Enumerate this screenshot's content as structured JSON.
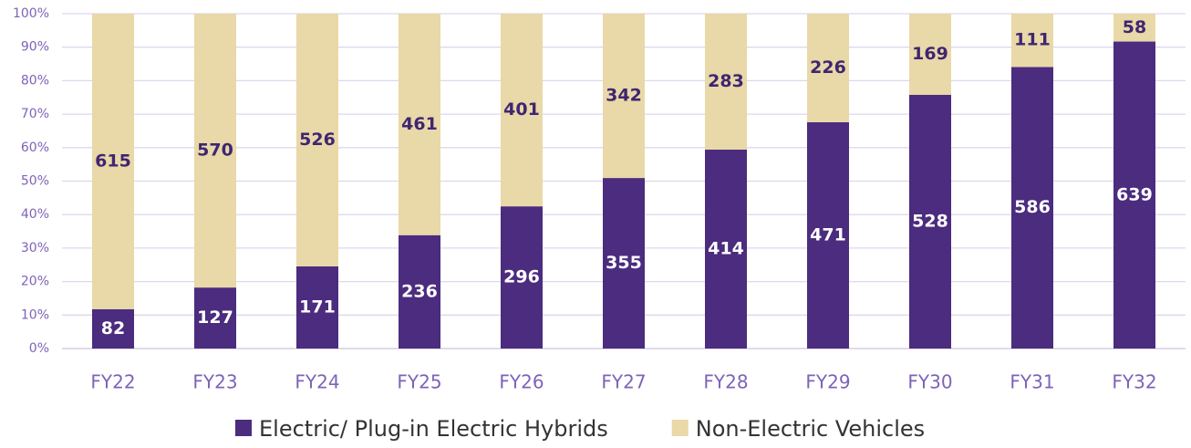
{
  "chart_data": {
    "type": "bar",
    "stacking": "percent",
    "categories": [
      "FY22",
      "FY23",
      "FY24",
      "FY25",
      "FY26",
      "FY27",
      "FY28",
      "FY29",
      "FY30",
      "FY31",
      "FY32"
    ],
    "series": [
      {
        "name": "Electric/ Plug-in Electric Hybrids",
        "color": "#4b2c7e",
        "label_color": "#ffffff",
        "values": [
          82,
          127,
          171,
          236,
          296,
          355,
          414,
          471,
          528,
          586,
          639
        ]
      },
      {
        "name": "Non-Electric Vehicles",
        "color": "#e9d8a8",
        "label_color": "#3f2670",
        "values": [
          615,
          570,
          526,
          461,
          401,
          342,
          283,
          226,
          169,
          111,
          58
        ]
      }
    ],
    "ylim": [
      0,
      100
    ],
    "yticks": [
      {
        "value": 0,
        "label": "0%"
      },
      {
        "value": 10,
        "label": "10%"
      },
      {
        "value": 20,
        "label": "20%"
      },
      {
        "value": 30,
        "label": "30%"
      },
      {
        "value": 40,
        "label": "40%"
      },
      {
        "value": 50,
        "label": "50%"
      },
      {
        "value": 60,
        "label": "60%"
      },
      {
        "value": 70,
        "label": "70%"
      },
      {
        "value": 80,
        "label": "80%"
      },
      {
        "value": 90,
        "label": "90%"
      },
      {
        "value": 100,
        "label": "100%"
      }
    ],
    "grid": true,
    "legend": "bottom"
  }
}
